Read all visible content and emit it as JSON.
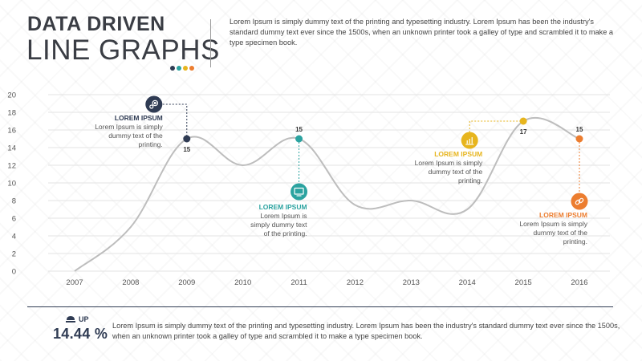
{
  "header": {
    "title_line1": "DATA DRIVEN",
    "title_line2": "LINE GRAPHS",
    "description": "Lorem Ipsum is simply dummy text of the printing and typesetting industry. Lorem Ipsum has been the industry's standard dummy text ever since the 1500s, when an unknown printer took a galley of type and scrambled it to make a type specimen book.",
    "dot_colors": [
      "#2f3b53",
      "#2ba3a0",
      "#e7b51e",
      "#ec7d2f"
    ]
  },
  "colors": {
    "navy": "#2f3b53",
    "teal": "#2ba3a0",
    "yellow": "#e7b51e",
    "orange": "#ec7d2f",
    "line": "#bdbdbd",
    "grid": "#e3e3e3",
    "axis_text": "#555555"
  },
  "chart_data": {
    "type": "line",
    "x": [
      2007,
      2008,
      2009,
      2010,
      2011,
      2012,
      2013,
      2014,
      2015,
      2016
    ],
    "values": [
      0,
      5,
      15,
      12,
      15,
      7.5,
      8,
      7,
      17,
      15
    ],
    "ylim": [
      0,
      20
    ],
    "yticks": [
      0,
      2,
      4,
      6,
      8,
      10,
      12,
      14,
      16,
      18,
      20
    ],
    "grid": true,
    "smooth": true,
    "highlights": [
      {
        "x": 2009,
        "y": 15,
        "label": "15",
        "color": "#2f3b53",
        "icon": "gear-icon"
      },
      {
        "x": 2011,
        "y": 15,
        "label": "15",
        "color": "#2ba3a0",
        "icon": "monitor-icon"
      },
      {
        "x": 2015,
        "y": 17,
        "label": "17",
        "color": "#e7b51e",
        "icon": "bar-chart-icon"
      },
      {
        "x": 2016,
        "y": 15,
        "label": "15",
        "color": "#ec7d2f",
        "icon": "link-icon"
      }
    ],
    "annotations": [
      {
        "title": "LOREM IPSUM",
        "lines": [
          "Lorem Ipsum is simply",
          "dummy text of the",
          "printing."
        ]
      },
      {
        "title": "LOREM IPSUM",
        "lines": [
          "Lorem Ipsum is",
          "simply dummy text",
          "of the printing."
        ]
      },
      {
        "title": "LOREM IPSUM",
        "lines": [
          "Lorem Ipsum is simply",
          "dummy text of the",
          "printing."
        ]
      },
      {
        "title": "LOREM IPSUM",
        "lines": [
          "Lorem Ipsum is simply",
          "dummy text of the",
          "printing."
        ]
      }
    ]
  },
  "footer": {
    "up_label": "UP",
    "stat_value": "14.44 %",
    "description": "Lorem Ipsum is simply dummy text of the printing and typesetting industry. Lorem Ipsum has been the industry's standard dummy text ever since the 1500s, when an unknown printer took a galley of type and scrambled it to make a type specimen book."
  }
}
